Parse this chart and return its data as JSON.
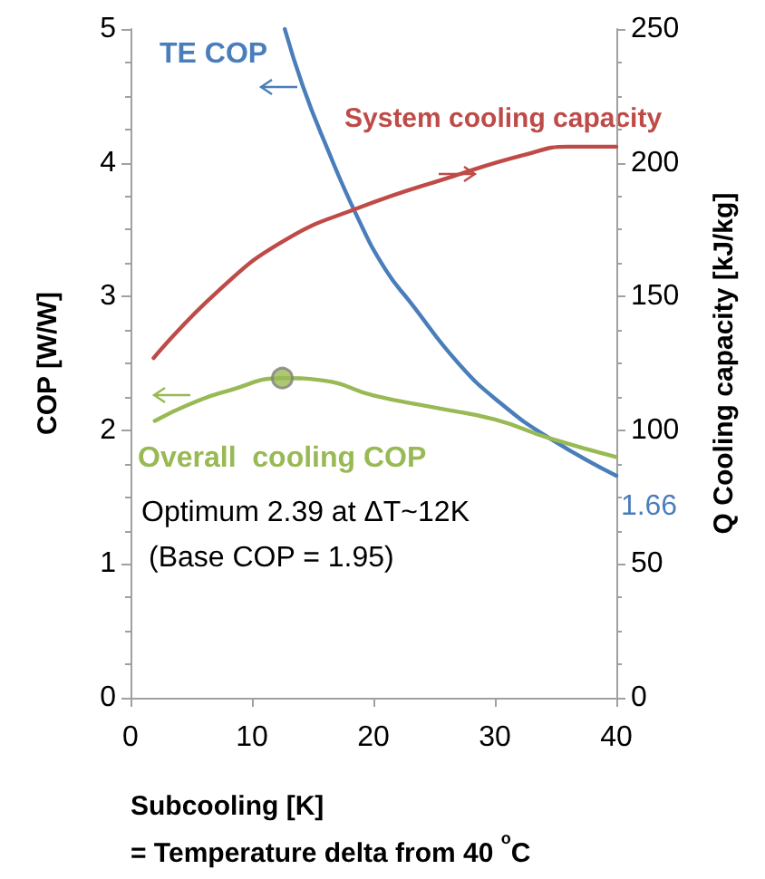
{
  "chart_data": {
    "type": "line",
    "xlabel": "Subcooling [K]\n= Temperature delta from 40 $^{o}$C",
    "ylabel": "COP [W/W]",
    "y2label": "Q Cooling capacity [kJ/kg]",
    "series": [
      {
        "name": "TE COP",
        "color": "#4a7ebb",
        "x": [
          12.7,
          14.2,
          16,
          18.7,
          21,
          23.1,
          27,
          30.5,
          34.5,
          40
        ],
        "values": [
          5,
          4.57,
          4.15,
          3.59,
          3.2,
          2.95,
          2.5,
          2.2,
          1.94,
          1.66
        ],
        "value_labels": [
          null,
          null,
          null,
          null,
          null,
          null,
          null,
          null,
          null,
          "1.66"
        ]
      },
      {
        "name": "System cooling capacity",
        "color": "#be4b48",
        "axis": "y2",
        "x": [
          1.9,
          7.2,
          12.7,
          18.7,
          26.6,
          32.5,
          36,
          40
        ],
        "values": [
          127,
          152,
          171,
          183,
          195,
          203,
          206,
          206
        ]
      },
      {
        "name": "Overall  cooling COP",
        "color": "#98b954",
        "x": [
          2,
          5,
          8.2,
          12.5,
          16,
          20,
          25,
          30,
          34.5,
          40
        ],
        "values": [
          2.07,
          2.2,
          2.3,
          2.39,
          2.37,
          2.26,
          2.17,
          2.08,
          1.94,
          1.8
        ]
      },
      {
        "type": "scatter",
        "color": "#98b954",
        "marker": "circle",
        "x": [
          12.5
        ],
        "values": [
          2.39
        ]
      }
    ],
    "annotations": [
      "Optimum 2.39 at ΔT~12K",
      "(Base COP = 1.95)"
    ],
    "xlim": [
      0,
      40
    ],
    "xticks": [
      0,
      10,
      20,
      30,
      40
    ],
    "ylim": [
      0,
      5
    ],
    "yticks": [
      0,
      1,
      2,
      3,
      4,
      5
    ],
    "y2lim": [
      0,
      250
    ],
    "y2ticks": [
      0,
      50,
      100,
      150,
      200,
      250
    ],
    "grid": false,
    "legend": false,
    "marker": "none",
    "line_style": "solid"
  }
}
